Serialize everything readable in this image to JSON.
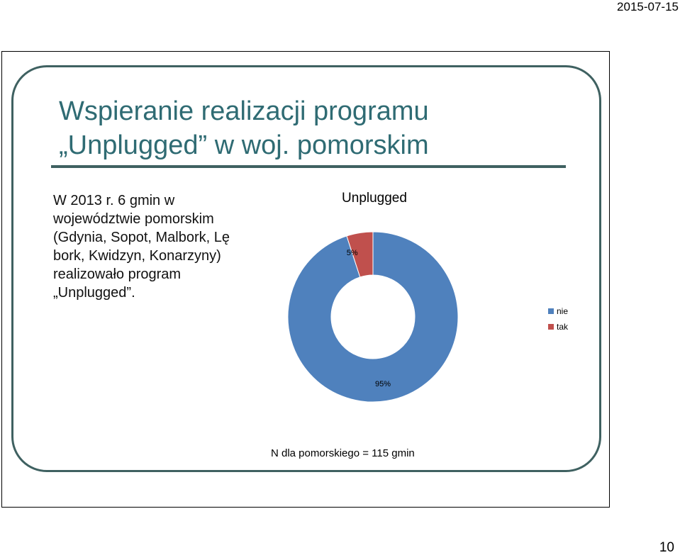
{
  "header": {
    "date": "2015-07-15"
  },
  "footer": {
    "page_number": "10"
  },
  "slide": {
    "title_line1": "Wspieranie realizacji programu",
    "title_line2": "„Unplugged” w woj. pomorskim",
    "body": "W 2013 r. 6 gmin w\nwojewództwie pomorskim\n(Gdynia, Sopot, Malbork, Lę\nbork, Kwidzyn, Konarzyny)\nrealizowało program\n„Unplugged”.",
    "footnote": "N dla pomorskiego = 115 gmin"
  },
  "chart_data": {
    "type": "pie",
    "variant": "doughnut",
    "title": "Unplugged",
    "categories": [
      "nie",
      "tak"
    ],
    "values": [
      95,
      5
    ],
    "data_labels": [
      "95%",
      "5%"
    ],
    "colors": [
      "#4f81bd",
      "#c0504d"
    ],
    "legend_position": "right"
  },
  "colors": {
    "title_text": "#2f6b73",
    "panel_border": "#3f6161"
  }
}
